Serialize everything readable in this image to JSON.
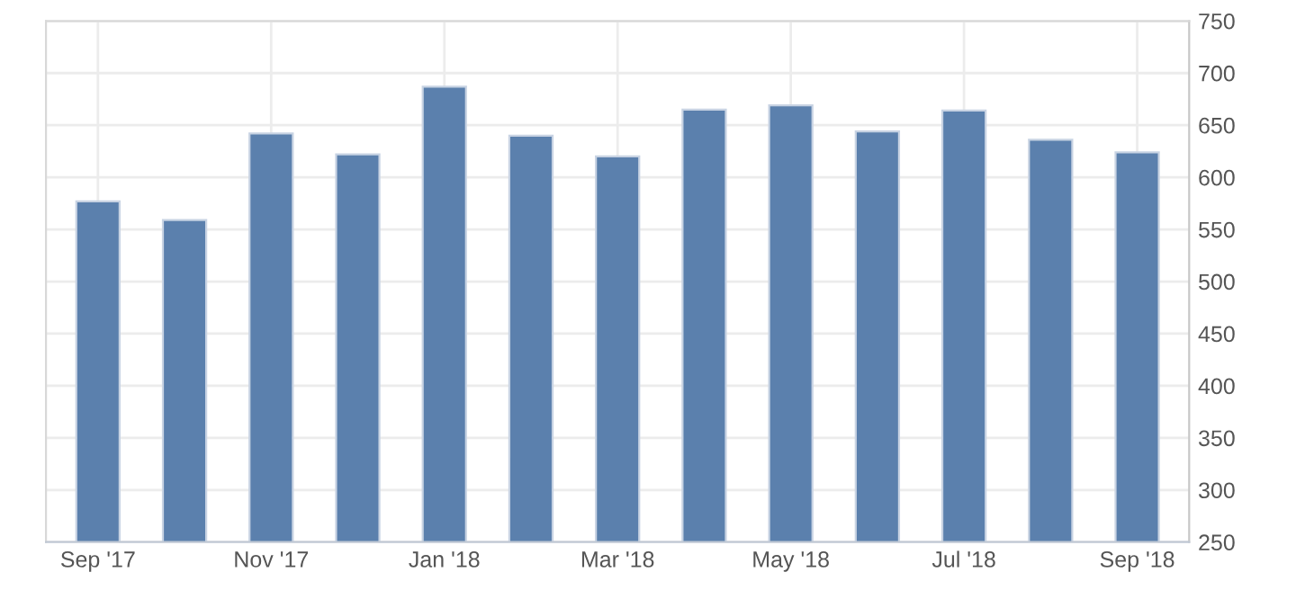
{
  "chart_data": {
    "type": "bar",
    "categories": [
      "Sep '17",
      null,
      "Nov '17",
      null,
      "Jan '18",
      null,
      "Mar '18",
      null,
      "May '18",
      null,
      "Jul '18",
      null,
      "Sep '18"
    ],
    "values": [
      577,
      559,
      642,
      622,
      687,
      640,
      620,
      665,
      669,
      644,
      664,
      636,
      624
    ],
    "color": "#5b80ad",
    "ylim": [
      250,
      750
    ],
    "yticks": [
      250,
      300,
      350,
      400,
      450,
      500,
      550,
      600,
      650,
      700,
      750
    ],
    "grid": true
  }
}
